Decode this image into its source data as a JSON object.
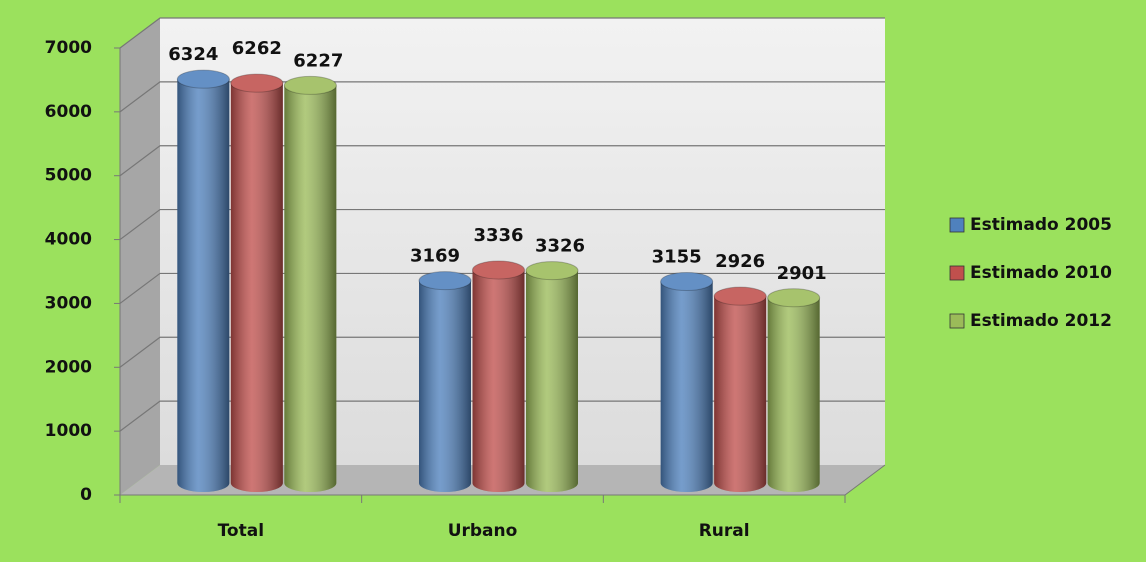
{
  "chart_data": {
    "type": "bar",
    "categories": [
      "Total",
      "Urbano",
      "Rural"
    ],
    "series": [
      {
        "name": "Estimado 2005",
        "color": "#4f81bd",
        "values": [
          6324,
          3169,
          3155
        ]
      },
      {
        "name": "Estimado 2010",
        "color": "#c0504d",
        "values": [
          6262,
          3336,
          2926
        ]
      },
      {
        "name": "Estimado 2012",
        "color": "#9bbb59",
        "values": [
          6227,
          3326,
          2901
        ]
      }
    ],
    "ylim": [
      0,
      7000
    ],
    "yticks": [
      0,
      1000,
      2000,
      3000,
      4000,
      5000,
      6000,
      7000
    ],
    "grid": true,
    "legend": "right"
  }
}
